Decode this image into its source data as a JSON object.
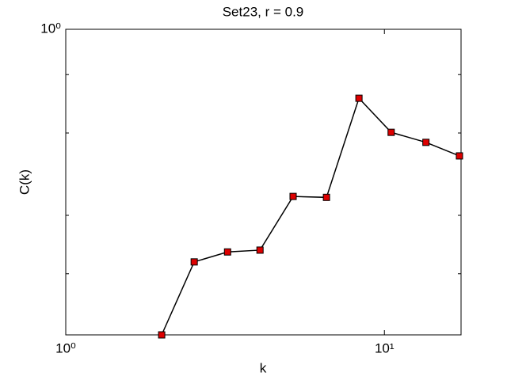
{
  "chart_data": {
    "type": "line",
    "title": "Set23, r = 0.9",
    "x_label": "k",
    "y_label": "C(k)",
    "xscale": "log",
    "yscale": "log",
    "xlim": [
      1,
      17.4
    ],
    "ylim": [
      0.222,
      1
    ],
    "xticks": [
      {
        "value": 1,
        "label": "10⁰"
      },
      {
        "value": 10,
        "label": "10¹"
      }
    ],
    "yticks": [
      {
        "value": 1,
        "label": "10⁰"
      }
    ],
    "yminorticks": [
      0.3,
      0.4,
      0.6,
      0.8
    ],
    "series": [
      {
        "color": "#000000",
        "marker_color": "#dd0000",
        "x": [
          2.0,
          2.53,
          3.22,
          4.07,
          5.17,
          6.58,
          8.32,
          10.5,
          13.5,
          17.2
        ],
        "values": [
          0.222,
          0.318,
          0.334,
          0.337,
          0.439,
          0.437,
          0.712,
          0.602,
          0.573,
          0.536
        ]
      }
    ]
  }
}
